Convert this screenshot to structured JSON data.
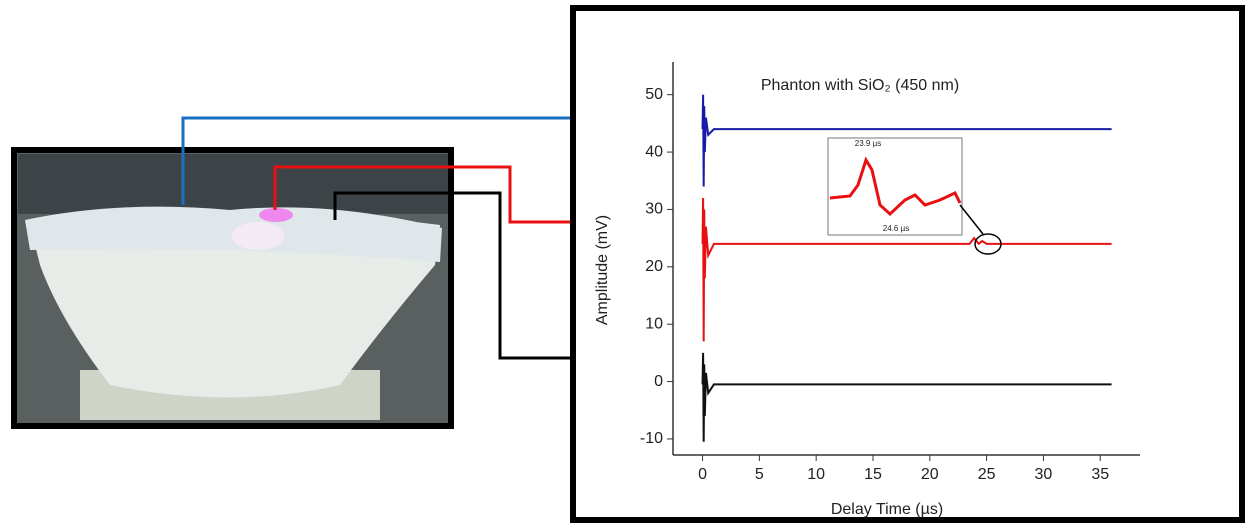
{
  "chart_data": {
    "type": "line",
    "title": "Phanton with SiO₂ (450 nm)",
    "x_label": "Delay Time (µs)",
    "y_label": "Amplitude (mV)",
    "x": [
      0,
      0.05,
      0.1,
      0.15,
      0.2,
      0.3,
      0.5,
      1,
      23.5,
      23.9,
      24.3,
      24.6,
      25,
      36
    ],
    "series": [
      {
        "color": "#1a1aa8",
        "values": [
          44,
          50,
          34,
          48,
          40,
          46,
          43,
          44,
          44,
          44,
          44,
          44,
          44,
          44
        ]
      },
      {
        "color": "#e81010",
        "values": [
          24,
          32,
          7,
          30,
          18,
          27,
          22,
          24,
          24,
          25,
          24,
          24.5,
          24,
          24
        ]
      },
      {
        "color": "#111111",
        "values": [
          -0.5,
          5,
          -10.5,
          3,
          -6,
          1.5,
          -2,
          -0.5,
          -0.5,
          -0.5,
          -0.5,
          -0.5,
          -0.5,
          -0.5
        ]
      }
    ],
    "inset_labels": [
      "23.9 µs",
      "24.6 µs"
    ],
    "xlim": [
      -2.6,
      38.5
    ],
    "ylim": [
      -12.8,
      55.7
    ],
    "xticks": [
      0,
      5,
      10,
      15,
      20,
      25,
      30,
      35
    ],
    "yticks": [
      -10,
      0,
      10,
      20,
      30,
      40,
      50
    ]
  }
}
